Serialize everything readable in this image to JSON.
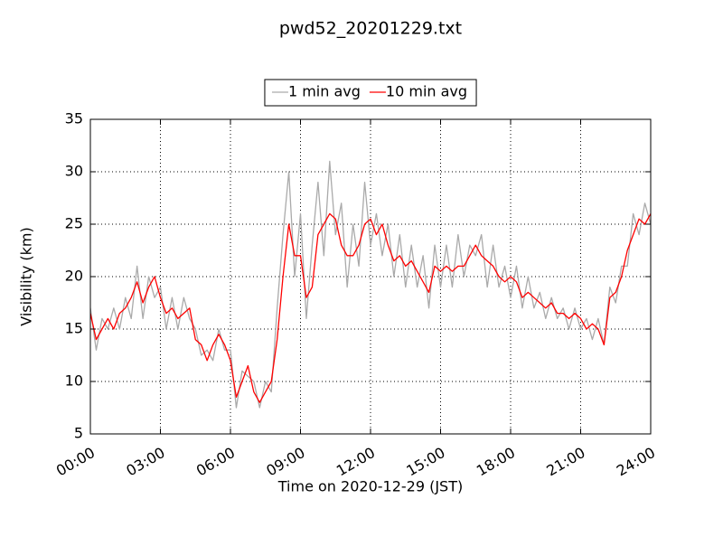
{
  "chart_data": {
    "type": "line",
    "title": "pwd52_20201229.txt",
    "x_label": "Time on 2020-12-29 (JST)",
    "y_label": "Visibility (km)",
    "x": [
      0,
      0.25,
      0.5,
      0.75,
      1,
      1.25,
      1.5,
      1.75,
      2,
      2.25,
      2.5,
      2.75,
      3,
      3.25,
      3.5,
      3.75,
      4,
      4.25,
      4.5,
      4.75,
      5,
      5.25,
      5.5,
      5.75,
      6,
      6.25,
      6.5,
      6.75,
      7,
      7.25,
      7.5,
      7.75,
      8,
      8.25,
      8.5,
      8.75,
      9,
      9.25,
      9.5,
      9.75,
      10,
      10.25,
      10.5,
      10.75,
      11,
      11.25,
      11.5,
      11.75,
      12,
      12.25,
      12.5,
      12.75,
      13,
      13.25,
      13.5,
      13.75,
      14,
      14.25,
      14.5,
      14.75,
      15,
      15.25,
      15.5,
      15.75,
      16,
      16.25,
      16.5,
      16.75,
      17,
      17.25,
      17.5,
      17.75,
      18,
      18.25,
      18.5,
      18.75,
      19,
      19.25,
      19.5,
      19.75,
      20,
      20.25,
      20.5,
      20.75,
      21,
      21.25,
      21.5,
      21.75,
      22,
      22.25,
      22.5,
      22.75,
      23,
      23.25,
      23.5,
      23.75,
      24
    ],
    "series": [
      {
        "name": "1 min avg",
        "color": "#aaaaaa",
        "values": [
          17,
          13,
          16,
          15,
          17,
          15,
          18,
          16,
          21,
          16,
          20,
          18,
          19,
          15,
          18,
          15,
          18,
          16,
          15,
          12.5,
          13,
          12,
          15,
          13,
          13,
          7.5,
          11,
          10.5,
          10,
          7.5,
          10,
          9,
          17,
          24,
          30,
          20,
          26,
          16,
          23,
          29,
          22,
          31,
          24,
          27,
          19,
          25,
          21,
          29,
          23,
          26,
          22,
          25,
          20,
          24,
          19,
          23,
          19,
          22,
          17,
          23,
          19,
          23,
          19,
          24,
          20,
          23,
          22,
          24,
          19,
          23,
          19,
          21,
          18,
          21,
          17,
          20,
          17,
          18.5,
          16,
          18,
          16,
          17,
          15,
          17,
          15,
          16,
          14,
          16,
          13.5,
          19,
          17.5,
          21,
          21,
          26,
          24,
          27,
          25
        ]
      },
      {
        "name": "10 min avg",
        "color": "#ff0000",
        "values": [
          16.5,
          14,
          15,
          16,
          15,
          16.5,
          17,
          18,
          19.5,
          17.5,
          19,
          20,
          18,
          16.5,
          17,
          16,
          16.5,
          17,
          14,
          13.5,
          12,
          13.5,
          14.5,
          13.5,
          12,
          8.5,
          10,
          11.5,
          9,
          8,
          9,
          10,
          14,
          20,
          25,
          22,
          22,
          18,
          19,
          24,
          25,
          26,
          25.5,
          23,
          22,
          22,
          23,
          25,
          25.5,
          24,
          25,
          23,
          21.5,
          22,
          21,
          21.5,
          20.5,
          19.5,
          18.5,
          21,
          20.5,
          21,
          20.5,
          21,
          21,
          22,
          23,
          22,
          21.5,
          21,
          20,
          19.5,
          20,
          19.5,
          18,
          18.5,
          18,
          17.5,
          17,
          17.5,
          16.5,
          16.5,
          16,
          16.5,
          16,
          15,
          15.5,
          15,
          13.5,
          18,
          18.5,
          20,
          22.5,
          24,
          25.5,
          25,
          26
        ]
      }
    ],
    "xlim": [
      0,
      24
    ],
    "xticks": [
      {
        "value": 0,
        "label": "00:00"
      },
      {
        "value": 3,
        "label": "03:00"
      },
      {
        "value": 6,
        "label": "06:00"
      },
      {
        "value": 9,
        "label": "09:00"
      },
      {
        "value": 12,
        "label": "12:00"
      },
      {
        "value": 15,
        "label": "15:00"
      },
      {
        "value": 18,
        "label": "18:00"
      },
      {
        "value": 21,
        "label": "21:00"
      },
      {
        "value": 24,
        "label": "24:00"
      }
    ],
    "ylim": [
      5,
      35
    ],
    "yticks": [
      5,
      10,
      15,
      20,
      25,
      30,
      35
    ],
    "grid": true,
    "legend": "upper center"
  }
}
